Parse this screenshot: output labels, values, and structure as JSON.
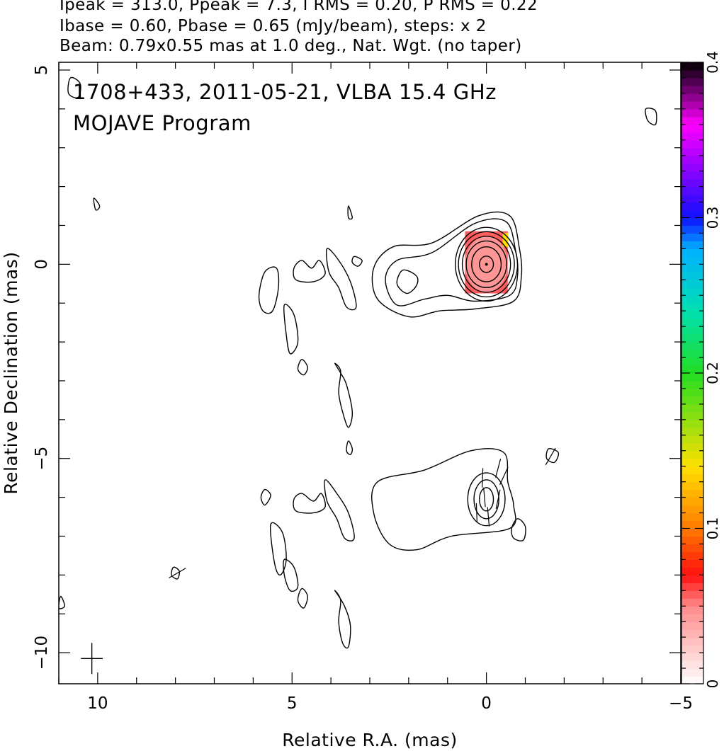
{
  "header": {
    "line1": "Ipeak = 313.0, Ppeak = 7.3, I RMS = 0.20, P RMS = 0.22",
    "line2": "Ibase = 0.60, Pbase = 0.65 (mJy/beam), steps: x 2",
    "line3": "Beam: 0.79x0.55 mas at 1.0 deg., Nat. Wgt. (no taper)"
  },
  "chart_data": {
    "type": "contour",
    "title": "1708+433, 2011-05-21, VLBA 15.4 GHz",
    "subtitle": "MOJAVE Program",
    "xlabel": "Relative R.A. (mas)",
    "ylabel": "Relative Declination (mas)",
    "xlim": [
      11,
      -5
    ],
    "ylim": [
      -10.8,
      5.2
    ],
    "x_ticks": [
      10,
      5,
      0,
      -5
    ],
    "x_tick_labels": [
      "10",
      "5",
      "0",
      "−5"
    ],
    "y_ticks": [
      5,
      0,
      -5,
      -10
    ],
    "y_tick_labels": [
      "5",
      "0",
      "−5",
      "−10"
    ],
    "colorbar": {
      "range": [
        0,
        0.4
      ],
      "ticks": [
        0,
        0.1,
        0.2,
        0.3,
        0.4
      ],
      "tick_labels": [
        "0",
        "0.1",
        "0.2",
        "0.3",
        "0.4"
      ],
      "stops": [
        {
          "v": 0.0,
          "color": "#ffffff"
        },
        {
          "v": 0.05,
          "color": "#ff8a8a"
        },
        {
          "v": 0.07,
          "color": "#ff1010"
        },
        {
          "v": 0.1,
          "color": "#ff7a00"
        },
        {
          "v": 0.14,
          "color": "#ffe000"
        },
        {
          "v": 0.2,
          "color": "#22dd22"
        },
        {
          "v": 0.24,
          "color": "#00e0b0"
        },
        {
          "v": 0.28,
          "color": "#00b0ff"
        },
        {
          "v": 0.3,
          "color": "#1010ff"
        },
        {
          "v": 0.34,
          "color": "#b000ff"
        },
        {
          "v": 0.36,
          "color": "#ff00ff"
        },
        {
          "v": 0.4,
          "color": "#000000"
        }
      ]
    },
    "intensity_map": {
      "core_center": [
        0,
        0
      ],
      "core_levels_mJy": [
        0.6,
        1.2,
        2.4,
        4.8,
        9.6,
        19.2,
        38.4,
        76.8,
        153.6
      ],
      "core_contour_radii_mas": [
        [
          0.18,
          0.21
        ],
        [
          0.38,
          0.45
        ],
        [
          0.52,
          0.6
        ],
        [
          0.62,
          0.72
        ],
        [
          0.72,
          0.84
        ],
        [
          0.8,
          0.95
        ]
      ],
      "jet_outline_mas": [
        [
          -0.85,
          0.4
        ],
        [
          -0.6,
          1.25
        ],
        [
          0.2,
          1.25
        ],
        [
          1.4,
          0.55
        ],
        [
          2.4,
          0.45
        ],
        [
          2.9,
          -0.1
        ],
        [
          2.8,
          -0.9
        ],
        [
          2.0,
          -1.35
        ],
        [
          1.2,
          -1.2
        ],
        [
          0.3,
          -1.15
        ],
        [
          -0.7,
          -0.95
        ],
        [
          -0.9,
          -0.3
        ]
      ],
      "inner_contour_mas": [
        [
          -0.75,
          0.35
        ],
        [
          -0.5,
          1.1
        ],
        [
          0.3,
          1.05
        ],
        [
          1.4,
          0.3
        ],
        [
          2.3,
          0.1
        ],
        [
          2.6,
          -0.4
        ],
        [
          2.3,
          -1.05
        ],
        [
          1.6,
          -0.9
        ],
        [
          1.0,
          -0.8
        ],
        [
          0.3,
          -0.95
        ],
        [
          -0.6,
          -0.8
        ],
        [
          -0.8,
          -0.3
        ]
      ],
      "knot_contour_mas": [
        [
          1.8,
          -0.3
        ],
        [
          2.15,
          -0.15
        ],
        [
          2.3,
          -0.5
        ],
        [
          2.05,
          -0.75
        ],
        [
          1.8,
          -0.55
        ]
      ],
      "islands_mas": [
        [
          [
            5.7,
            -0.2
          ],
          [
            5.4,
            -0.1
          ],
          [
            5.35,
            -0.6
          ],
          [
            5.5,
            -1.2
          ],
          [
            5.75,
            -1.2
          ],
          [
            5.85,
            -0.8
          ]
        ],
        [
          [
            4.75,
            0.1
          ],
          [
            4.5,
            -0.1
          ],
          [
            4.3,
            0.1
          ],
          [
            4.15,
            -0.25
          ],
          [
            4.45,
            -0.45
          ],
          [
            4.9,
            -0.4
          ],
          [
            4.95,
            -0.1
          ]
        ],
        [
          [
            4.1,
            0.4
          ],
          [
            3.8,
            0.1
          ],
          [
            3.5,
            -0.45
          ],
          [
            3.35,
            -1.1
          ],
          [
            3.6,
            -1.1
          ],
          [
            3.8,
            -0.6
          ],
          [
            4.05,
            -0.2
          ]
        ],
        [
          [
            5.2,
            -1.05
          ],
          [
            4.95,
            -1.3
          ],
          [
            4.85,
            -2.0
          ],
          [
            5.05,
            -2.3
          ],
          [
            5.15,
            -1.8
          ]
        ],
        [
          [
            4.75,
            -2.45
          ],
          [
            4.6,
            -2.65
          ],
          [
            4.7,
            -2.85
          ],
          [
            4.85,
            -2.7
          ]
        ],
        [
          [
            3.9,
            -2.55
          ],
          [
            3.75,
            -2.75
          ],
          [
            3.8,
            -3.3
          ],
          [
            3.7,
            -3.8
          ],
          [
            3.55,
            -4.2
          ],
          [
            3.45,
            -3.8
          ],
          [
            3.6,
            -3.1
          ],
          [
            3.75,
            -2.8
          ]
        ],
        [
          [
            3.55,
            1.5
          ],
          [
            3.45,
            1.2
          ],
          [
            3.55,
            1.2
          ]
        ],
        [
          [
            3.4,
            0.2
          ],
          [
            3.2,
            0.1
          ],
          [
            3.3,
            -0.05
          ],
          [
            3.45,
            0.05
          ]
        ],
        [
          [
            3.55,
            -4.55
          ],
          [
            3.45,
            -4.75
          ],
          [
            3.5,
            -4.9
          ],
          [
            3.6,
            -4.8
          ]
        ],
        [
          [
            10.1,
            1.7
          ],
          [
            9.95,
            1.5
          ],
          [
            10.05,
            1.4
          ]
        ],
        [
          [
            10.7,
            4.8
          ],
          [
            10.45,
            4.65
          ],
          [
            10.5,
            4.3
          ],
          [
            10.75,
            4.4
          ]
        ],
        [
          [
            -4.1,
            4.0
          ],
          [
            -4.35,
            3.95
          ],
          [
            -4.35,
            3.6
          ],
          [
            -4.15,
            3.7
          ]
        ]
      ],
      "pol_outline_mas": [
        [
          -0.55,
          -5.6
        ],
        [
          -0.45,
          -4.85
        ],
        [
          0.4,
          -4.8
        ],
        [
          1.6,
          -5.3
        ],
        [
          2.8,
          -5.6
        ],
        [
          2.9,
          -6.4
        ],
        [
          2.5,
          -7.2
        ],
        [
          1.8,
          -7.35
        ],
        [
          0.9,
          -7.0
        ],
        [
          -0.6,
          -6.8
        ],
        [
          -0.7,
          -6.2
        ]
      ],
      "pol_contour_radii_mas": [
        [
          0.18,
          0.3
        ],
        [
          0.32,
          0.5
        ],
        [
          0.48,
          0.68
        ]
      ],
      "pol_islands_mas": [
        [
          [
            5.7,
            -5.8
          ],
          [
            5.55,
            -5.95
          ],
          [
            5.7,
            -6.2
          ],
          [
            5.8,
            -6.0
          ]
        ],
        [
          [
            4.75,
            -5.9
          ],
          [
            4.45,
            -6.1
          ],
          [
            4.25,
            -5.9
          ],
          [
            4.15,
            -6.25
          ],
          [
            4.45,
            -6.4
          ],
          [
            4.9,
            -6.35
          ],
          [
            4.95,
            -6.05
          ]
        ],
        [
          [
            4.15,
            -5.55
          ],
          [
            3.85,
            -5.9
          ],
          [
            3.55,
            -6.4
          ],
          [
            3.4,
            -7.05
          ],
          [
            3.65,
            -7.05
          ],
          [
            3.85,
            -6.55
          ],
          [
            4.1,
            -6.1
          ]
        ],
        [
          [
            5.55,
            -6.7
          ],
          [
            5.25,
            -6.9
          ],
          [
            5.15,
            -7.6
          ],
          [
            5.3,
            -8.0
          ],
          [
            5.45,
            -7.7
          ]
        ],
        [
          [
            5.2,
            -7.6
          ],
          [
            4.95,
            -7.8
          ],
          [
            4.85,
            -8.3
          ],
          [
            5.05,
            -8.4
          ],
          [
            5.2,
            -8.0
          ]
        ],
        [
          [
            4.75,
            -8.35
          ],
          [
            4.6,
            -8.55
          ],
          [
            4.7,
            -8.85
          ],
          [
            4.85,
            -8.65
          ]
        ],
        [
          [
            3.9,
            -8.4
          ],
          [
            3.75,
            -8.65
          ],
          [
            3.8,
            -9.2
          ],
          [
            3.7,
            -9.75
          ],
          [
            3.55,
            -9.85
          ],
          [
            3.5,
            -9.3
          ],
          [
            3.65,
            -8.8
          ]
        ],
        [
          [
            8.05,
            -7.8
          ],
          [
            7.9,
            -7.9
          ],
          [
            7.95,
            -8.1
          ],
          [
            8.1,
            -8.0
          ]
        ],
        [
          [
            -1.6,
            -4.75
          ],
          [
            -1.85,
            -4.85
          ],
          [
            -1.75,
            -5.1
          ],
          [
            -1.55,
            -5.0
          ]
        ],
        [
          [
            -0.8,
            -6.55
          ],
          [
            -1.0,
            -6.75
          ],
          [
            -0.95,
            -7.1
          ],
          [
            -0.7,
            -7.05
          ],
          [
            -0.65,
            -6.8
          ]
        ],
        [
          [
            10.95,
            -8.55
          ],
          [
            10.85,
            -8.8
          ],
          [
            11.0,
            -8.85
          ]
        ]
      ],
      "evpa_vectors_mas": [
        [
          -0.3,
          -5.25,
          75
        ],
        [
          -0.45,
          -5.45,
          65
        ],
        [
          0.1,
          -5.5,
          88
        ],
        [
          0.05,
          -6.0,
          95
        ],
        [
          -0.3,
          -6.05,
          78
        ],
        [
          -0.05,
          -6.5,
          95
        ],
        [
          0.25,
          -6.4,
          92
        ],
        [
          -1.65,
          -4.95,
          60
        ],
        [
          7.95,
          -7.95,
          30
        ]
      ],
      "beam_marker_mas": [
        10.15,
        -10.15
      ]
    }
  }
}
